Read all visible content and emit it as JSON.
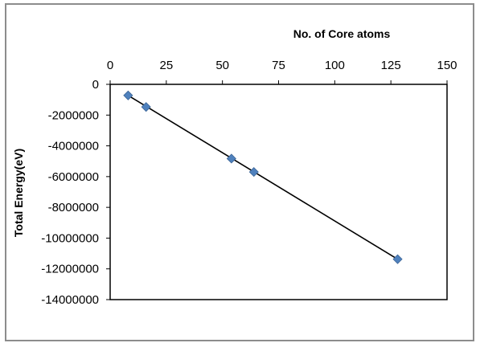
{
  "chart_data": {
    "type": "scatter",
    "title": "",
    "xlabel": "No. of Core atoms",
    "ylabel": "Total Energy(eV)",
    "x_axis_position": "top",
    "xlim": [
      0,
      150
    ],
    "ylim": [
      -14000000,
      0
    ],
    "x_ticks": [
      0,
      25,
      50,
      75,
      100,
      125,
      150
    ],
    "y_ticks": [
      0,
      -2000000,
      -4000000,
      -6000000,
      -8000000,
      -10000000,
      -12000000,
      -14000000
    ],
    "x_tick_labels": [
      "0",
      "25",
      "50",
      "75",
      "100",
      "125",
      "150"
    ],
    "y_tick_labels": [
      "0",
      "-2000000",
      "-4000000",
      "-6000000",
      "-8000000",
      "-10000000",
      "-12000000",
      "-14000000"
    ],
    "grid": false,
    "legend": "none",
    "series": [
      {
        "marker": "diamond",
        "color": "#4F81BD",
        "x": [
          8,
          16,
          54,
          64,
          128
        ],
        "y": [
          -720000,
          -1470000,
          -4830000,
          -5700000,
          -11370000
        ]
      }
    ],
    "trendline": {
      "type": "linear",
      "color": "#000000",
      "x": [
        8,
        128
      ],
      "y": [
        -720000,
        -11370000
      ]
    }
  }
}
